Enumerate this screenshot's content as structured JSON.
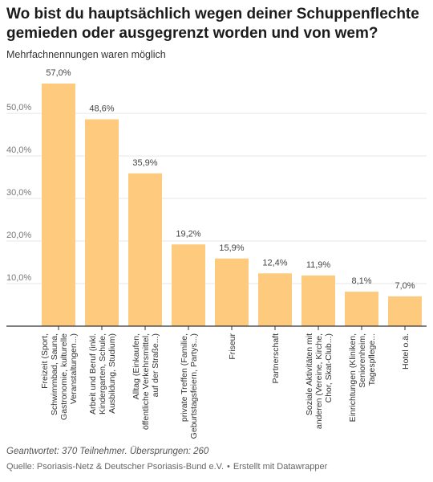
{
  "header": {
    "title": "Wo bist du hauptsächlich wegen deiner Schuppenflechte gemieden oder ausgegrenzt worden und von wem?",
    "subtitle": "Mehrfachnennungen waren möglich"
  },
  "footer": {
    "note": "Geantwortet: 370 Teilnehmer. Übersprungen: 260",
    "source": "Quelle: Psoriasis-Netz & Deutscher Psoriasis-Bund e.V.",
    "separator": "•",
    "credit": "Erstellt mit Datawrapper"
  },
  "chart_data": {
    "type": "bar",
    "title": "Wo bist du hauptsächlich wegen deiner Schuppenflechte gemieden oder ausgegrenzt worden und von wem?",
    "subtitle": "Mehrfachnennungen waren möglich",
    "categories": [
      "Freizeit (Sport, Schwimmbad, Sauna, Gastronomie, kulturelle Veranstaltungen...)",
      "Arbeit und Beruf (inkl. Kindergarten, Schule, Ausbildung, Studium)",
      "Alltag (Einkaufen, öffentliche Verkehrsmittel, auf der Straße...)",
      "private Treffen (Familie, Geburtstagsfeiern, Partys...)",
      "Friseur",
      "Partnerschaft",
      "Soziale Aktivitäten mit anderen (Vereine, Kirche, Chor, Skat-Club...)",
      "Einrichtungen (Kliniken, Seniorenheim, Tagespflege...)",
      "Hotel o.ä."
    ],
    "category_lines": [
      [
        "Freizeit (Sport,",
        "Schwimmbad, Sauna,",
        "Gastronomie, kulturelle",
        "Veranstaltungen...)"
      ],
      [
        "Arbeit und Beruf (inkl.",
        "Kindergarten, Schule,",
        "Ausbildung, Studium)"
      ],
      [
        "Alltag (Einkaufen,",
        "öffentliche Verkehrsmittel,",
        "auf der Straße...)"
      ],
      [
        "private Treffen (Familie,",
        "Geburtstagsfeiern, Partys...)"
      ],
      [
        "Friseur"
      ],
      [
        "Partnerschaft"
      ],
      [
        "Soziale Aktivitäten mit",
        "anderen (Vereine, Kirche,",
        "Chor, Skat-Club...)"
      ],
      [
        "Einrichtungen (Kliniken,",
        "Seniorenheim,",
        "Tagespflege..."
      ],
      [
        "Hotel o.ä."
      ]
    ],
    "values": [
      57.0,
      48.6,
      35.9,
      19.2,
      15.9,
      12.4,
      11.9,
      8.1,
      7.0
    ],
    "value_labels": [
      "57,0%",
      "48,6%",
      "35,9%",
      "19,2%",
      "15,9%",
      "12,4%",
      "11,9%",
      "8,1%",
      "7,0%"
    ],
    "y_ticks": [
      10,
      20,
      30,
      40,
      50
    ],
    "y_tick_labels": [
      "10,0%",
      "20,0%",
      "30,0%",
      "40,0%",
      "50,0%"
    ],
    "ylim": [
      0,
      57
    ],
    "grid": true,
    "bar_color": "#fdca7e",
    "grid_color": "#e6e6e6",
    "baseline_color": "#333333"
  }
}
